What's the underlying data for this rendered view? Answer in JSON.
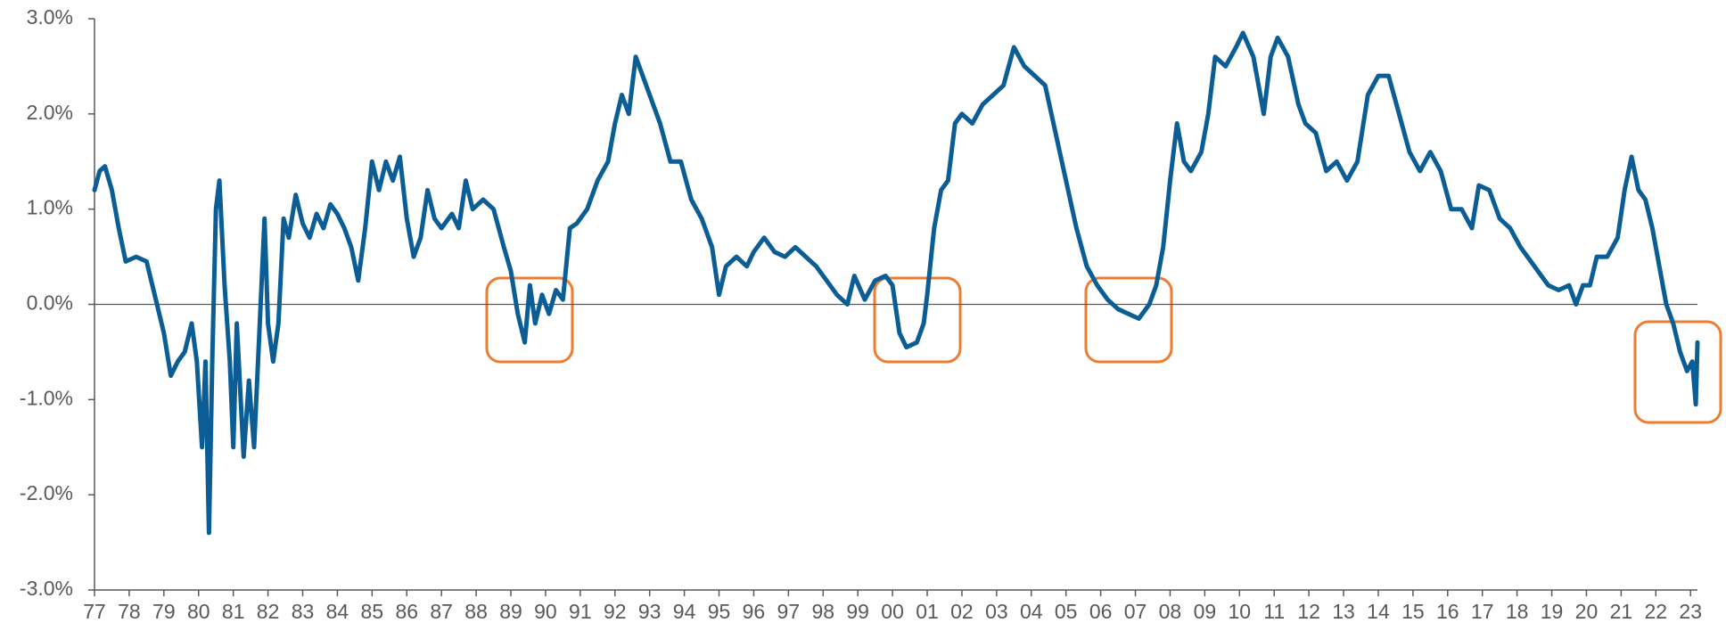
{
  "chart_data": {
    "type": "line",
    "x": [
      1977.0,
      1977.15,
      1977.3,
      1977.5,
      1977.7,
      1977.9,
      1978.2,
      1978.5,
      1978.8,
      1979.0,
      1979.2,
      1979.4,
      1979.6,
      1979.8,
      1979.95,
      1980.1,
      1980.2,
      1980.3,
      1980.4,
      1980.5,
      1980.6,
      1980.75,
      1980.9,
      1981.0,
      1981.1,
      1981.3,
      1981.45,
      1981.6,
      1981.75,
      1981.9,
      1982.0,
      1982.15,
      1982.3,
      1982.45,
      1982.6,
      1982.8,
      1983.0,
      1983.2,
      1983.4,
      1983.6,
      1983.8,
      1984.0,
      1984.2,
      1984.4,
      1984.6,
      1984.8,
      1985.0,
      1985.2,
      1985.4,
      1985.6,
      1985.8,
      1986.0,
      1986.2,
      1986.4,
      1986.6,
      1986.8,
      1987.0,
      1987.3,
      1987.5,
      1987.7,
      1987.9,
      1988.2,
      1988.5,
      1988.8,
      1989.0,
      1989.2,
      1989.4,
      1989.55,
      1989.7,
      1989.9,
      1990.1,
      1990.3,
      1990.5,
      1990.7,
      1990.9,
      1991.2,
      1991.5,
      1991.8,
      1992.0,
      1992.2,
      1992.4,
      1992.6,
      1992.8,
      1993.0,
      1993.3,
      1993.6,
      1993.9,
      1994.2,
      1994.5,
      1994.8,
      1995.0,
      1995.2,
      1995.5,
      1995.8,
      1996.0,
      1996.3,
      1996.6,
      1996.9,
      1997.2,
      1997.5,
      1997.8,
      1998.1,
      1998.4,
      1998.7,
      1998.9,
      1999.2,
      1999.5,
      1999.8,
      2000.0,
      2000.2,
      2000.4,
      2000.7,
      2000.9,
      2001.0,
      2001.2,
      2001.4,
      2001.6,
      2001.8,
      2002.0,
      2002.3,
      2002.6,
      2002.9,
      2003.2,
      2003.5,
      2003.8,
      2004.1,
      2004.4,
      2004.7,
      2005.0,
      2005.3,
      2005.6,
      2005.9,
      2006.2,
      2006.5,
      2006.8,
      2007.1,
      2007.4,
      2007.6,
      2007.8,
      2008.0,
      2008.2,
      2008.4,
      2008.6,
      2008.9,
      2009.1,
      2009.3,
      2009.6,
      2009.9,
      2010.1,
      2010.4,
      2010.7,
      2010.9,
      2011.1,
      2011.4,
      2011.7,
      2011.9,
      2012.2,
      2012.5,
      2012.8,
      2013.1,
      2013.4,
      2013.7,
      2014.0,
      2014.3,
      2014.6,
      2014.9,
      2015.2,
      2015.5,
      2015.8,
      2016.1,
      2016.4,
      2016.7,
      2016.9,
      2017.2,
      2017.5,
      2017.8,
      2018.1,
      2018.4,
      2018.7,
      2018.9,
      2019.2,
      2019.5,
      2019.7,
      2019.9,
      2020.1,
      2020.3,
      2020.6,
      2020.9,
      2021.1,
      2021.3,
      2021.5,
      2021.7,
      2021.9,
      2022.1,
      2022.3,
      2022.5,
      2022.7,
      2022.9,
      2023.05,
      2023.15,
      2023.2
    ],
    "series": [
      {
        "color": "#0b5d95",
        "values": [
          1.2,
          1.4,
          1.45,
          1.2,
          0.8,
          0.45,
          0.5,
          0.45,
          0.0,
          -0.3,
          -0.75,
          -0.6,
          -0.5,
          -0.2,
          -0.6,
          -1.5,
          -0.6,
          -2.4,
          -0.5,
          1.0,
          1.3,
          0.2,
          -0.6,
          -1.5,
          -0.2,
          -1.6,
          -0.8,
          -1.5,
          -0.3,
          0.9,
          -0.2,
          -0.6,
          -0.2,
          0.9,
          0.7,
          1.15,
          0.85,
          0.7,
          0.95,
          0.8,
          1.05,
          0.95,
          0.8,
          0.6,
          0.25,
          0.8,
          1.5,
          1.2,
          1.5,
          1.3,
          1.55,
          0.9,
          0.5,
          0.7,
          1.2,
          0.9,
          0.8,
          0.95,
          0.8,
          1.3,
          1.0,
          1.1,
          1.0,
          0.6,
          0.35,
          -0.1,
          -0.4,
          0.2,
          -0.2,
          0.1,
          -0.1,
          0.15,
          0.05,
          0.8,
          0.85,
          1.0,
          1.3,
          1.5,
          1.9,
          2.2,
          2.0,
          2.6,
          2.4,
          2.2,
          1.9,
          1.5,
          1.5,
          1.1,
          0.9,
          0.6,
          0.1,
          0.4,
          0.5,
          0.4,
          0.55,
          0.7,
          0.55,
          0.5,
          0.6,
          0.5,
          0.4,
          0.25,
          0.1,
          0.0,
          0.3,
          0.05,
          0.25,
          0.3,
          0.2,
          -0.3,
          -0.45,
          -0.4,
          -0.2,
          0.1,
          0.8,
          1.2,
          1.3,
          1.9,
          2.0,
          1.9,
          2.1,
          2.2,
          2.3,
          2.7,
          2.5,
          2.4,
          2.3,
          1.8,
          1.3,
          0.8,
          0.4,
          0.2,
          0.05,
          -0.05,
          -0.1,
          -0.15,
          0.0,
          0.2,
          0.6,
          1.3,
          1.9,
          1.5,
          1.4,
          1.6,
          2.0,
          2.6,
          2.5,
          2.7,
          2.85,
          2.6,
          2.0,
          2.6,
          2.8,
          2.6,
          2.1,
          1.9,
          1.8,
          1.4,
          1.5,
          1.3,
          1.5,
          2.2,
          2.4,
          2.4,
          2.0,
          1.6,
          1.4,
          1.6,
          1.4,
          1.0,
          1.0,
          0.8,
          1.25,
          1.2,
          0.9,
          0.8,
          0.6,
          0.45,
          0.3,
          0.2,
          0.15,
          0.2,
          0.0,
          0.2,
          0.2,
          0.5,
          0.5,
          0.7,
          1.2,
          1.55,
          1.2,
          1.1,
          0.8,
          0.4,
          0.0,
          -0.2,
          -0.5,
          -0.7,
          -0.6,
          -1.05,
          -0.4
        ]
      }
    ],
    "xlim": [
      1977,
      2023.2
    ],
    "xticks": [
      {
        "value": 1977,
        "label": "77"
      },
      {
        "value": 1978,
        "label": "78"
      },
      {
        "value": 1979,
        "label": "79"
      },
      {
        "value": 1980,
        "label": "80"
      },
      {
        "value": 1981,
        "label": "81"
      },
      {
        "value": 1982,
        "label": "82"
      },
      {
        "value": 1983,
        "label": "83"
      },
      {
        "value": 1984,
        "label": "84"
      },
      {
        "value": 1985,
        "label": "85"
      },
      {
        "value": 1986,
        "label": "86"
      },
      {
        "value": 1987,
        "label": "87"
      },
      {
        "value": 1988,
        "label": "88"
      },
      {
        "value": 1989,
        "label": "89"
      },
      {
        "value": 1990,
        "label": "90"
      },
      {
        "value": 1991,
        "label": "91"
      },
      {
        "value": 1992,
        "label": "92"
      },
      {
        "value": 1993,
        "label": "93"
      },
      {
        "value": 1994,
        "label": "94"
      },
      {
        "value": 1995,
        "label": "95"
      },
      {
        "value": 1996,
        "label": "96"
      },
      {
        "value": 1997,
        "label": "97"
      },
      {
        "value": 1998,
        "label": "98"
      },
      {
        "value": 1999,
        "label": "99"
      },
      {
        "value": 2000,
        "label": "00"
      },
      {
        "value": 2001,
        "label": "01"
      },
      {
        "value": 2002,
        "label": "02"
      },
      {
        "value": 2003,
        "label": "03"
      },
      {
        "value": 2004,
        "label": "04"
      },
      {
        "value": 2005,
        "label": "05"
      },
      {
        "value": 2006,
        "label": "06"
      },
      {
        "value": 2007,
        "label": "07"
      },
      {
        "value": 2008,
        "label": "08"
      },
      {
        "value": 2009,
        "label": "09"
      },
      {
        "value": 2010,
        "label": "10"
      },
      {
        "value": 2011,
        "label": "11"
      },
      {
        "value": 2012,
        "label": "12"
      },
      {
        "value": 2013,
        "label": "13"
      },
      {
        "value": 2014,
        "label": "14"
      },
      {
        "value": 2015,
        "label": "15"
      },
      {
        "value": 2016,
        "label": "16"
      },
      {
        "value": 2017,
        "label": "17"
      },
      {
        "value": 2018,
        "label": "18"
      },
      {
        "value": 2019,
        "label": "19"
      },
      {
        "value": 2020,
        "label": "20"
      },
      {
        "value": 2021,
        "label": "21"
      },
      {
        "value": 2022,
        "label": "22"
      },
      {
        "value": 2023,
        "label": "23"
      }
    ],
    "ylim": [
      -3,
      3
    ],
    "yticks": [
      {
        "value": -3,
        "label": "-3.0%"
      },
      {
        "value": -2,
        "label": "-2.0%"
      },
      {
        "value": -1,
        "label": "-1.0%"
      },
      {
        "value": 0,
        "label": "0.0%"
      },
      {
        "value": 1,
        "label": "1.0%"
      },
      {
        "value": 2,
        "label": "2.0%"
      },
      {
        "value": 3,
        "label": "3.0%"
      }
    ],
    "grid": false
  }
}
